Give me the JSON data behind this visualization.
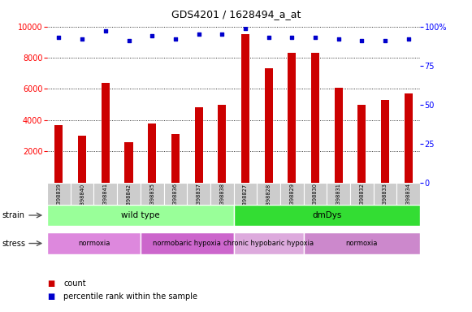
{
  "title": "GDS4201 / 1628494_a_at",
  "samples": [
    "GSM398839",
    "GSM398840",
    "GSM398841",
    "GSM398842",
    "GSM398835",
    "GSM398836",
    "GSM398837",
    "GSM398838",
    "GSM398827",
    "GSM398828",
    "GSM398829",
    "GSM398830",
    "GSM398831",
    "GSM398832",
    "GSM398833",
    "GSM398834"
  ],
  "counts": [
    3700,
    3000,
    6400,
    2600,
    3800,
    3100,
    4800,
    5000,
    9500,
    7300,
    8300,
    8300,
    6100,
    5000,
    5300,
    5700
  ],
  "percentile_ranks": [
    93,
    92,
    97,
    91,
    94,
    92,
    95,
    95,
    99,
    93,
    93,
    93,
    92,
    91,
    91,
    92
  ],
  "bar_color": "#cc0000",
  "dot_color": "#0000cc",
  "ylim_left": [
    0,
    10000
  ],
  "ylim_right": [
    0,
    100
  ],
  "yticks_left": [
    2000,
    4000,
    6000,
    8000,
    10000
  ],
  "yticks_right": [
    0,
    25,
    50,
    75,
    100
  ],
  "yticklabels_right": [
    "0",
    "25",
    "50",
    "75",
    "100%"
  ],
  "strain_labels": [
    {
      "text": "wild type",
      "start": 0,
      "end": 8,
      "color": "#99ff99"
    },
    {
      "text": "dmDys",
      "start": 8,
      "end": 16,
      "color": "#33dd33"
    }
  ],
  "stress_labels": [
    {
      "text": "normoxia",
      "start": 0,
      "end": 4,
      "color": "#dd88dd"
    },
    {
      "text": "normobaric hypoxia",
      "start": 4,
      "end": 8,
      "color": "#cc66cc"
    },
    {
      "text": "chronic hypobaric hypoxia",
      "start": 8,
      "end": 11,
      "color": "#ddaadd"
    },
    {
      "text": "normoxia",
      "start": 11,
      "end": 16,
      "color": "#cc88cc"
    }
  ],
  "strain_row_label": "strain",
  "stress_row_label": "stress",
  "legend_count_label": "count",
  "legend_pct_label": "percentile rank within the sample",
  "background_color": "#ffffff",
  "tick_label_area_color": "#cccccc",
  "tick_sep_color": "#aaaaaa"
}
